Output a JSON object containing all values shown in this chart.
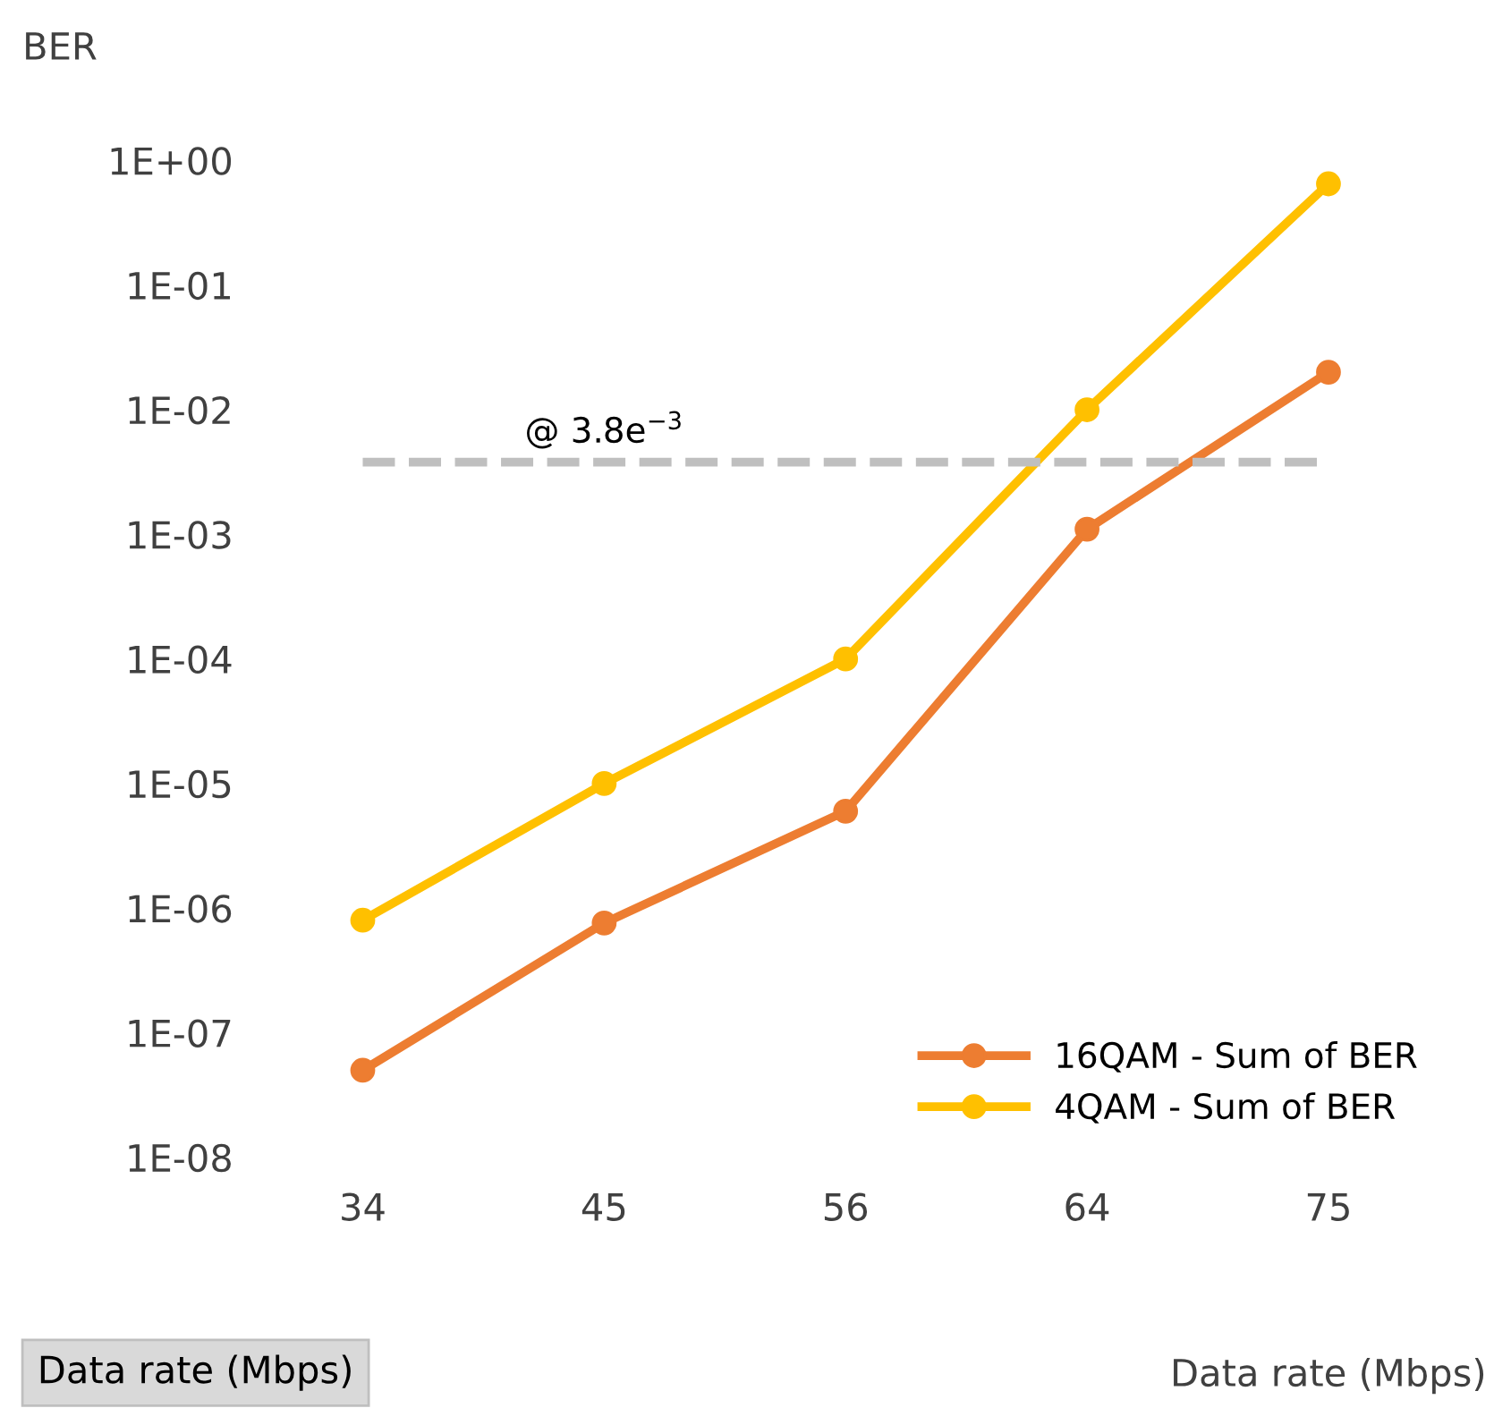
{
  "chart_data": {
    "type": "line",
    "xlabel": "Data rate (Mbps)",
    "ylabel": "BER",
    "log": "y",
    "categories": [
      "34",
      "45",
      "56",
      "64",
      "75"
    ],
    "series": [
      {
        "name": "16QAM - Sum of BER",
        "color": "#ed7d31",
        "values": [
          5e-08,
          7.6e-07,
          6e-06,
          0.0011,
          0.02
        ]
      },
      {
        "name": "4QAM - Sum of BER",
        "color": "#ffc000",
        "values": [
          8e-07,
          1e-05,
          0.0001,
          0.01,
          0.65
        ]
      }
    ],
    "ylim": [
      1e-08,
      1
    ],
    "yticks": [
      {
        "value": 1,
        "label": "1E+00"
      },
      {
        "value": 0.1,
        "label": "1E-01"
      },
      {
        "value": 0.01,
        "label": "1E-02"
      },
      {
        "value": 0.001,
        "label": "1E-03"
      },
      {
        "value": 0.0001,
        "label": "1E-04"
      },
      {
        "value": 1e-05,
        "label": "1E-05"
      },
      {
        "value": 1e-06,
        "label": "1E-06"
      },
      {
        "value": 1e-07,
        "label": "1E-07"
      },
      {
        "value": 1e-08,
        "label": "1E-08"
      }
    ],
    "ref_lines": [
      {
        "axis": "y",
        "value": 0.0038,
        "label": "@ 3.8e$^{−3}$",
        "color": "#bfbfbf",
        "line_style": "dashed"
      }
    ],
    "annotations": [
      "Data rate (Mbps)"
    ],
    "marker": "circle",
    "line_style": "solid",
    "grid": false,
    "legend": "bottom right"
  }
}
